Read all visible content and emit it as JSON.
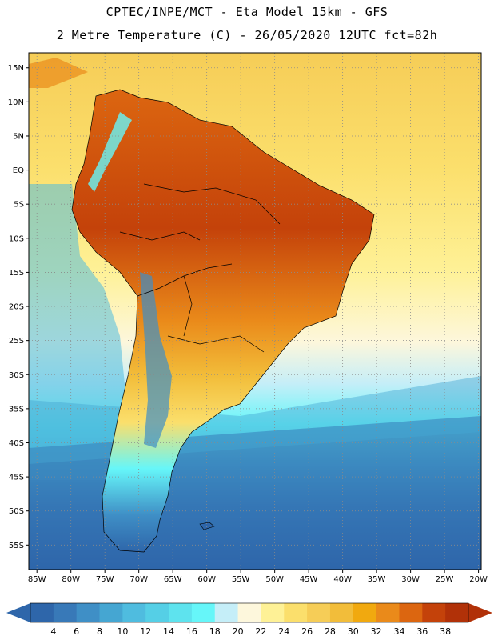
{
  "header": {
    "line1": "CPTEC/INPE/MCT -  Eta Model 15km - GFS",
    "line2": "2 Metre Temperature (C) - 26/05/2020 12UTC fct=82h"
  },
  "map": {
    "lat_ticks": [
      {
        "value": 15,
        "label": "15N"
      },
      {
        "value": 10,
        "label": "10N"
      },
      {
        "value": 5,
        "label": "5N"
      },
      {
        "value": 0,
        "label": "EQ"
      },
      {
        "value": -5,
        "label": "5S"
      },
      {
        "value": -10,
        "label": "10S"
      },
      {
        "value": -15,
        "label": "15S"
      },
      {
        "value": -20,
        "label": "20S"
      },
      {
        "value": -25,
        "label": "25S"
      },
      {
        "value": -30,
        "label": "30S"
      },
      {
        "value": -35,
        "label": "35S"
      },
      {
        "value": -40,
        "label": "40S"
      },
      {
        "value": -45,
        "label": "45S"
      },
      {
        "value": -50,
        "label": "50S"
      },
      {
        "value": -55,
        "label": "55S"
      }
    ],
    "lon_ticks": [
      {
        "value": -85,
        "label": "85W"
      },
      {
        "value": -80,
        "label": "80W"
      },
      {
        "value": -75,
        "label": "75W"
      },
      {
        "value": -70,
        "label": "70W"
      },
      {
        "value": -65,
        "label": "65W"
      },
      {
        "value": -60,
        "label": "60W"
      },
      {
        "value": -55,
        "label": "55W"
      },
      {
        "value": -50,
        "label": "50W"
      },
      {
        "value": -45,
        "label": "45W"
      },
      {
        "value": -40,
        "label": "40W"
      },
      {
        "value": -35,
        "label": "35W"
      },
      {
        "value": -30,
        "label": "30W"
      },
      {
        "value": -25,
        "label": "25W"
      },
      {
        "value": -20,
        "label": "20W"
      }
    ]
  },
  "colorbar": {
    "labels": [
      "4",
      "6",
      "8",
      "10",
      "12",
      "14",
      "16",
      "18",
      "20",
      "22",
      "24",
      "26",
      "28",
      "30",
      "32",
      "34",
      "36",
      "38"
    ],
    "colors": [
      "#2e66aa",
      "#3879b8",
      "#3f8fc6",
      "#45a6d2",
      "#4fbcdf",
      "#55cfe6",
      "#5ee3ee",
      "#66f6f9",
      "#c5eef8",
      "#fdf7dc",
      "#fef196",
      "#fbdf6c",
      "#f6cd57",
      "#f2bd3a",
      "#f1a90f",
      "#ea8a1a",
      "#dc6610",
      "#c4420a",
      "#b13108"
    ]
  }
}
